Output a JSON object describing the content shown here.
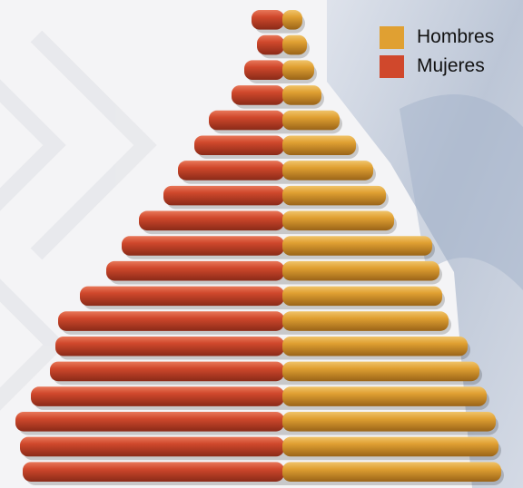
{
  "chart_data": {
    "type": "bar",
    "orientation": "horizontal-population-pyramid",
    "series": [
      {
        "name": "Hombres",
        "color": "#e0a032",
        "values": [
          22,
          27,
          35,
          43,
          63,
          81,
          100,
          114,
          123,
          165,
          173,
          176,
          183,
          204,
          217,
          225,
          235,
          238,
          241
        ]
      },
      {
        "name": "Mujeres",
        "color": "#d0482c",
        "values": [
          34,
          28,
          42,
          56,
          81,
          97,
          115,
          131,
          158,
          177,
          194,
          223,
          247,
          250,
          256,
          277,
          294,
          289,
          286
        ]
      }
    ],
    "order": "top-to-bottom",
    "legend": {
      "position": "top-right"
    },
    "grid": false
  }
}
